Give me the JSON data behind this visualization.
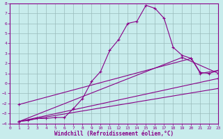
{
  "xlabel": "Windchill (Refroidissement éolien,°C)",
  "ylabel": "",
  "bg_color": "#c8ecec",
  "line_color": "#880088",
  "grid_color": "#99bbbb",
  "ylim": [
    -4,
    8
  ],
  "xlim": [
    0,
    23
  ],
  "yticks": [
    -4,
    -3,
    -2,
    -1,
    0,
    1,
    2,
    3,
    4,
    5,
    6,
    7,
    8
  ],
  "xticks": [
    0,
    1,
    2,
    3,
    4,
    5,
    6,
    7,
    8,
    9,
    10,
    11,
    12,
    13,
    14,
    15,
    16,
    17,
    18,
    19,
    20,
    21,
    22,
    23
  ],
  "lines": [
    {
      "x": [
        1,
        2,
        3,
        4,
        5,
        6,
        7,
        8,
        9,
        10,
        11,
        12,
        13,
        14,
        15,
        16,
        17,
        18,
        19,
        20,
        21,
        22,
        23
      ],
      "y": [
        -3.8,
        -3.7,
        -3.5,
        -3.5,
        -3.4,
        -3.4,
        -2.5,
        -1.5,
        0.2,
        1.2,
        3.3,
        4.4,
        6.0,
        6.2,
        7.8,
        7.5,
        6.5,
        3.6,
        2.8,
        2.5,
        1.1,
        1.0,
        1.3
      ]
    },
    {
      "x": [
        1,
        23
      ],
      "y": [
        -3.8,
        0.5
      ]
    },
    {
      "x": [
        1,
        23
      ],
      "y": [
        -3.8,
        -0.5
      ]
    },
    {
      "x": [
        1,
        19,
        23
      ],
      "y": [
        -3.8,
        2.6,
        1.0
      ]
    },
    {
      "x": [
        1,
        20,
        21,
        23
      ],
      "y": [
        -2.1,
        2.5,
        1.0,
        1.3
      ]
    }
  ]
}
